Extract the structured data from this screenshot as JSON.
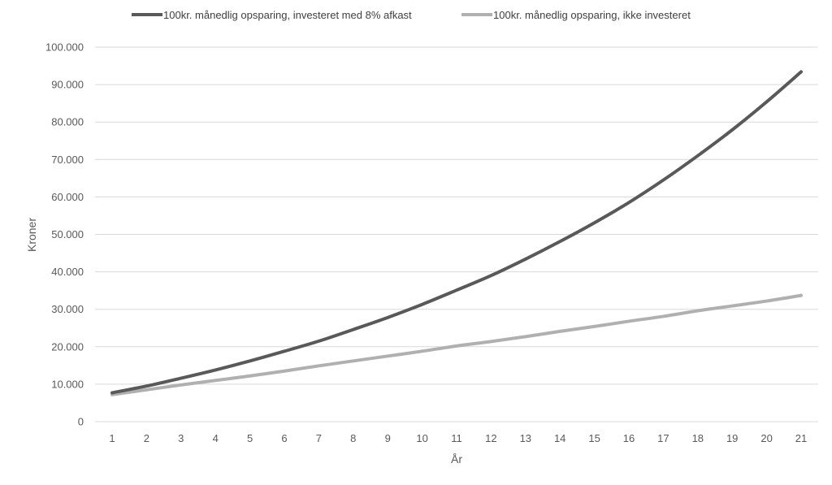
{
  "chart_data": {
    "type": "line",
    "title": "",
    "xlabel": "År",
    "ylabel": "Kroner",
    "x": [
      "1",
      "2",
      "3",
      "4",
      "5",
      "6",
      "7",
      "8",
      "9",
      "10",
      "11",
      "12",
      "13",
      "14",
      "15",
      "16",
      "17",
      "18",
      "19",
      "20",
      "21"
    ],
    "ylim": [
      0,
      100000
    ],
    "yticks": [
      0,
      10000,
      20000,
      30000,
      40000,
      50000,
      60000,
      70000,
      80000,
      90000,
      100000
    ],
    "ytick_labels": [
      "0",
      "10.000",
      "20.000",
      "30.000",
      "40.000",
      "50.000",
      "60.000",
      "70.000",
      "80.000",
      "90.000",
      "100.000"
    ],
    "grid": true,
    "legend_position": "top",
    "series": [
      {
        "name": "100kr. månedlig opsparing, investeret med 8% afkast",
        "color": "#595959",
        "values": [
          7700,
          9500,
          11600,
          13800,
          16200,
          18800,
          21500,
          24600,
          27800,
          31300,
          35100,
          39000,
          43400,
          48100,
          53100,
          58500,
          64500,
          71000,
          77900,
          85400,
          93400
        ]
      },
      {
        "name": "100kr. månedlig opsparing, ikke investeret",
        "color": "#b0b0b0",
        "values": [
          7200,
          8500,
          9800,
          11000,
          12200,
          13500,
          14900,
          16200,
          17500,
          18800,
          20200,
          21400,
          22700,
          24100,
          25400,
          26800,
          28100,
          29600,
          30900,
          32200,
          33700
        ]
      }
    ]
  }
}
